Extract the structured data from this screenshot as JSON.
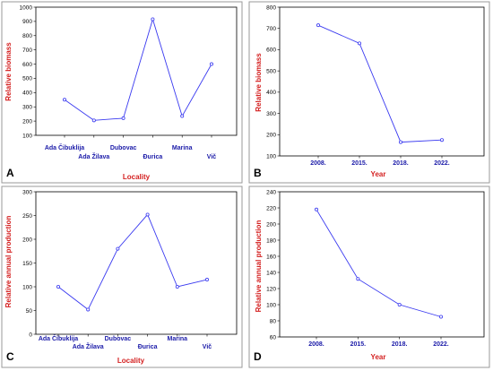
{
  "colors": {
    "series": "#3a3af0",
    "axis_label": "#d42020",
    "category_label": "#1a1aa8",
    "frame": "#9a9a9a"
  },
  "chart_data": [
    {
      "panel": "A",
      "type": "line",
      "title": "",
      "xlabel": "Locality",
      "ylabel": "Relative biomass",
      "categories": [
        "Ada Čibuklija",
        "Ada Žilava",
        "Dubovac",
        "Đurica",
        "Marina",
        "Vič"
      ],
      "values": [
        350,
        205,
        220,
        915,
        235,
        600
      ],
      "ylim": [
        100,
        1000
      ],
      "yticks": [
        100,
        200,
        300,
        400,
        500,
        600,
        700,
        800,
        900,
        1000
      ],
      "grid": false,
      "legend": "none"
    },
    {
      "panel": "B",
      "type": "line",
      "title": "",
      "xlabel": "Year",
      "ylabel": "Relative biomass",
      "categories": [
        "2008.",
        "2015.",
        "2018.",
        "2022."
      ],
      "values": [
        715,
        630,
        165,
        175
      ],
      "ylim": [
        100,
        800
      ],
      "yticks": [
        100,
        200,
        300,
        400,
        500,
        600,
        700,
        800
      ],
      "grid": false,
      "legend": "none"
    },
    {
      "panel": "C",
      "type": "line",
      "title": "",
      "xlabel": "Locality",
      "ylabel": "Relative annual production",
      "categories": [
        "Ada Čibuklija",
        "Ada Žilava",
        "Dubovac",
        "Đurica",
        "Marina",
        "Vič"
      ],
      "values": [
        100,
        52,
        180,
        252,
        100,
        115
      ],
      "ylim": [
        0,
        300
      ],
      "yticks": [
        0,
        50,
        100,
        150,
        200,
        250,
        300
      ],
      "grid": false,
      "legend": "none"
    },
    {
      "panel": "D",
      "type": "line",
      "title": "",
      "xlabel": "Year",
      "ylabel": "Relative annual production",
      "categories": [
        "2008.",
        "2015.",
        "2018.",
        "2022."
      ],
      "values": [
        218,
        132,
        100,
        85
      ],
      "ylim": [
        60,
        240
      ],
      "yticks": [
        60,
        80,
        100,
        120,
        140,
        160,
        180,
        200,
        220,
        240
      ],
      "grid": false,
      "legend": "none"
    }
  ]
}
